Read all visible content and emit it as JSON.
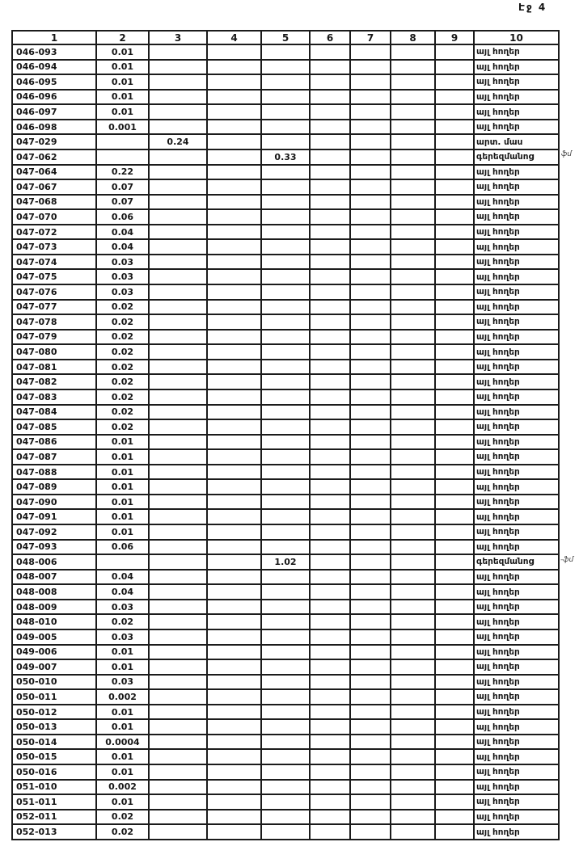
{
  "page": {
    "label": "Էջ 4"
  },
  "table": {
    "headers": [
      "1",
      "2",
      "3",
      "4",
      "5",
      "6",
      "7",
      "8",
      "9",
      "10"
    ],
    "rows": [
      [
        "046-093",
        "0.01",
        "",
        "",
        "",
        "",
        "",
        "",
        "",
        "այլ հողեր"
      ],
      [
        "046-094",
        "0.01",
        "",
        "",
        "",
        "",
        "",
        "",
        "",
        "այլ հողեր"
      ],
      [
        "046-095",
        "0.01",
        "",
        "",
        "",
        "",
        "",
        "",
        "",
        "այլ հողեր"
      ],
      [
        "046-096",
        "0.01",
        "",
        "",
        "",
        "",
        "",
        "",
        "",
        "այլ հողեր"
      ],
      [
        "046-097",
        "0.01",
        "",
        "",
        "",
        "",
        "",
        "",
        "",
        "այլ հողեր"
      ],
      [
        "046-098",
        "0.001",
        "",
        "",
        "",
        "",
        "",
        "",
        "",
        "այլ հողեր"
      ],
      [
        "047-029",
        "",
        "0.24",
        "",
        "",
        "",
        "",
        "",
        "",
        "արտ. մաս"
      ],
      [
        "047-062",
        "",
        "",
        "",
        "0.33",
        "",
        "",
        "",
        "",
        "գերեզմանոց"
      ],
      [
        "047-064",
        "0.22",
        "",
        "",
        "",
        "",
        "",
        "",
        "",
        "այլ հողեր"
      ],
      [
        "047-067",
        "0.07",
        "",
        "",
        "",
        "",
        "",
        "",
        "",
        "այլ հողեր"
      ],
      [
        "047-068",
        "0.07",
        "",
        "",
        "",
        "",
        "",
        "",
        "",
        "այլ հողեր"
      ],
      [
        "047-070",
        "0.06",
        "",
        "",
        "",
        "",
        "",
        "",
        "",
        "այլ հողեր"
      ],
      [
        "047-072",
        "0.04",
        "",
        "",
        "",
        "",
        "",
        "",
        "",
        "այլ հողեր"
      ],
      [
        "047-073",
        "0.04",
        "",
        "",
        "",
        "",
        "",
        "",
        "",
        "այլ հողեր"
      ],
      [
        "047-074",
        "0.03",
        "",
        "",
        "",
        "",
        "",
        "",
        "",
        "այլ հողեր"
      ],
      [
        "047-075",
        "0.03",
        "",
        "",
        "",
        "",
        "",
        "",
        "",
        "այլ հողեր"
      ],
      [
        "047-076",
        "0.03",
        "",
        "",
        "",
        "",
        "",
        "",
        "",
        "այլ հողեր"
      ],
      [
        "047-077",
        "0.02",
        "",
        "",
        "",
        "",
        "",
        "",
        "",
        "այլ հողեր"
      ],
      [
        "047-078",
        "0.02",
        "",
        "",
        "",
        "",
        "",
        "",
        "",
        "այլ հողեր"
      ],
      [
        "047-079",
        "0.02",
        "",
        "",
        "",
        "",
        "",
        "",
        "",
        "այլ հողեր"
      ],
      [
        "047-080",
        "0.02",
        "",
        "",
        "",
        "",
        "",
        "",
        "",
        "այլ հողեր"
      ],
      [
        "047-081",
        "0.02",
        "",
        "",
        "",
        "",
        "",
        "",
        "",
        "այլ հողեր"
      ],
      [
        "047-082",
        "0.02",
        "",
        "",
        "",
        "",
        "",
        "",
        "",
        "այլ հողեր"
      ],
      [
        "047-083",
        "0.02",
        "",
        "",
        "",
        "",
        "",
        "",
        "",
        "այլ հողեր"
      ],
      [
        "047-084",
        "0.02",
        "",
        "",
        "",
        "",
        "",
        "",
        "",
        "այլ հողեր"
      ],
      [
        "047-085",
        "0.02",
        "",
        "",
        "",
        "",
        "",
        "",
        "",
        "այլ հողեր"
      ],
      [
        "047-086",
        "0.01",
        "",
        "",
        "",
        "",
        "",
        "",
        "",
        "այլ հողեր"
      ],
      [
        "047-087",
        "0.01",
        "",
        "",
        "",
        "",
        "",
        "",
        "",
        "այլ հողեր"
      ],
      [
        "047-088",
        "0.01",
        "",
        "",
        "",
        "",
        "",
        "",
        "",
        "այլ հողեր"
      ],
      [
        "047-089",
        "0.01",
        "",
        "",
        "",
        "",
        "",
        "",
        "",
        "այլ հողեր"
      ],
      [
        "047-090",
        "0.01",
        "",
        "",
        "",
        "",
        "",
        "",
        "",
        "այլ հողեր"
      ],
      [
        "047-091",
        "0.01",
        "",
        "",
        "",
        "",
        "",
        "",
        "",
        "այլ հողեր"
      ],
      [
        "047-092",
        "0.01",
        "",
        "",
        "",
        "",
        "",
        "",
        "",
        "այլ հողեր"
      ],
      [
        "047-093",
        "0.06",
        "",
        "",
        "",
        "",
        "",
        "",
        "",
        "այլ հողեր"
      ],
      [
        "048-006",
        "",
        "",
        "",
        "1.02",
        "",
        "",
        "",
        "",
        "գերեզմանոց"
      ],
      [
        "048-007",
        "0.04",
        "",
        "",
        "",
        "",
        "",
        "",
        "",
        "այլ հողեր"
      ],
      [
        "048-008",
        "0.04",
        "",
        "",
        "",
        "",
        "",
        "",
        "",
        "այլ հողեր"
      ],
      [
        "048-009",
        "0.03",
        "",
        "",
        "",
        "",
        "",
        "",
        "",
        "այլ հողեր"
      ],
      [
        "048-010",
        "0.02",
        "",
        "",
        "",
        "",
        "",
        "",
        "",
        "այլ հողեր"
      ],
      [
        "049-005",
        "0.03",
        "",
        "",
        "",
        "",
        "",
        "",
        "",
        "այլ հողեր"
      ],
      [
        "049-006",
        "0.01",
        "",
        "",
        "",
        "",
        "",
        "",
        "",
        "այլ հողեր"
      ],
      [
        "049-007",
        "0.01",
        "",
        "",
        "",
        "",
        "",
        "",
        "",
        "այլ հողեր"
      ],
      [
        "050-010",
        "0.03",
        "",
        "",
        "",
        "",
        "",
        "",
        "",
        "այլ հողեր"
      ],
      [
        "050-011",
        "0.002",
        "",
        "",
        "",
        "",
        "",
        "",
        "",
        "այլ հողեր"
      ],
      [
        "050-012",
        "0.01",
        "",
        "",
        "",
        "",
        "",
        "",
        "",
        "այլ հողեր"
      ],
      [
        "050-013",
        "0.01",
        "",
        "",
        "",
        "",
        "",
        "",
        "",
        "այլ հողեր"
      ],
      [
        "050-014",
        "0.0004",
        "",
        "",
        "",
        "",
        "",
        "",
        "",
        "այլ հողեր"
      ],
      [
        "050-015",
        "0.01",
        "",
        "",
        "",
        "",
        "",
        "",
        "",
        "այլ հողեր"
      ],
      [
        "050-016",
        "0.01",
        "",
        "",
        "",
        "",
        "",
        "",
        "",
        "այլ հողեր"
      ],
      [
        "051-010",
        "0.002",
        "",
        "",
        "",
        "",
        "",
        "",
        "",
        "այլ հողեր"
      ],
      [
        "051-011",
        "0.01",
        "",
        "",
        "",
        "",
        "",
        "",
        "",
        "այլ հողեր"
      ],
      [
        "052-011",
        "0.02",
        "",
        "",
        "",
        "",
        "",
        "",
        "",
        "այլ հողեր"
      ],
      [
        "052-013",
        "0.02",
        "",
        "",
        "",
        "",
        "",
        "",
        "",
        "այլ հողեր"
      ]
    ]
  },
  "margin_marks": [
    {
      "text": "ֆմ"
    },
    {
      "text": "-ֆմ"
    }
  ]
}
